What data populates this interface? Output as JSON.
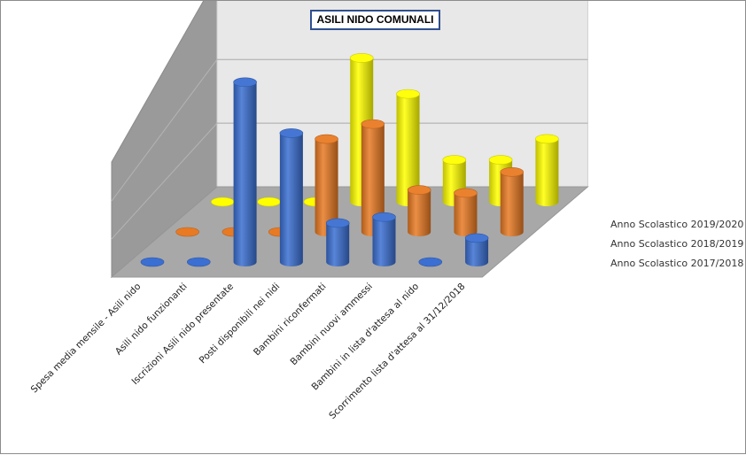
{
  "chart_data": {
    "type": "bar",
    "style": "3d-cylinder",
    "title": "ASILI NIDO COMUNALI",
    "categories": [
      "Spesa media mensile - Asili nido",
      "Asili nido funzionanti",
      "Iscrizioni Asili nido presentate",
      "Posti disponibili nei nidi",
      "Bambini riconfermati",
      "Bambini nuovi ammessi",
      "Bambini in lista d'attesa al nido",
      "Scorrimento lista d'attesa al 31/12/2018"
    ],
    "series": [
      {
        "name": "Anno Scolastico 2019/2020",
        "color": "#3b6fd1",
        "values": [
          0,
          0,
          6.0,
          4.3,
          1.3,
          1.5,
          0,
          0.8
        ]
      },
      {
        "name": "Anno Scolastico 2018/2019",
        "color": "#e87a24",
        "values": [
          0,
          0,
          0,
          3.1,
          3.6,
          1.4,
          1.3,
          2.0
        ]
      },
      {
        "name": "Anno Scolastico 2017/2018",
        "color": "#ffff00",
        "values": [
          0,
          0,
          0,
          4.8,
          3.6,
          1.4,
          1.4,
          2.1
        ]
      }
    ],
    "ylim": [
      0,
      7
    ],
    "grid": true,
    "legend": "right"
  }
}
